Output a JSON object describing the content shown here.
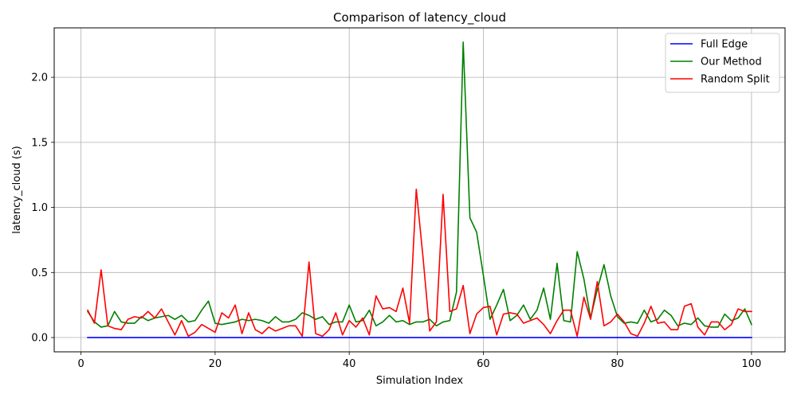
{
  "chart_data": {
    "type": "line",
    "title": "Comparison of latency_cloud",
    "xlabel": "Simulation Index",
    "ylabel": "latency_cloud (s)",
    "xlim": [
      -4,
      105
    ],
    "ylim": [
      -0.11,
      2.38
    ],
    "xticks": [
      0,
      20,
      40,
      60,
      80,
      100
    ],
    "xtick_labels": [
      "0",
      "20",
      "40",
      "60",
      "80",
      "100"
    ],
    "yticks": [
      0.0,
      0.5,
      1.0,
      1.5,
      2.0
    ],
    "ytick_labels": [
      "0.0",
      "0.5",
      "1.0",
      "1.5",
      "2.0"
    ],
    "grid": true,
    "legend_position": "top-right",
    "x": [
      1,
      2,
      3,
      4,
      5,
      6,
      7,
      8,
      9,
      10,
      11,
      12,
      13,
      14,
      15,
      16,
      17,
      18,
      19,
      20,
      21,
      22,
      23,
      24,
      25,
      26,
      27,
      28,
      29,
      30,
      31,
      32,
      33,
      34,
      35,
      36,
      37,
      38,
      39,
      40,
      41,
      42,
      43,
      44,
      45,
      46,
      47,
      48,
      49,
      50,
      51,
      52,
      53,
      54,
      55,
      56,
      57,
      58,
      59,
      60,
      61,
      62,
      63,
      64,
      65,
      66,
      67,
      68,
      69,
      70,
      71,
      72,
      73,
      74,
      75,
      76,
      77,
      78,
      79,
      80,
      81,
      82,
      83,
      84,
      85,
      86,
      87,
      88,
      89,
      90,
      91,
      92,
      93,
      94,
      95,
      96,
      97,
      98,
      99,
      100
    ],
    "series": [
      {
        "name": "Full Edge",
        "color": "#0000ff",
        "values": [
          0,
          0,
          0,
          0,
          0,
          0,
          0,
          0,
          0,
          0,
          0,
          0,
          0,
          0,
          0,
          0,
          0,
          0,
          0,
          0,
          0,
          0,
          0,
          0,
          0,
          0,
          0,
          0,
          0,
          0,
          0,
          0,
          0,
          0,
          0,
          0,
          0,
          0,
          0,
          0,
          0,
          0,
          0,
          0,
          0,
          0,
          0,
          0,
          0,
          0,
          0,
          0,
          0,
          0,
          0,
          0,
          0,
          0,
          0,
          0,
          0,
          0,
          0,
          0,
          0,
          0,
          0,
          0,
          0,
          0,
          0,
          0,
          0,
          0,
          0,
          0,
          0,
          0,
          0,
          0,
          0,
          0,
          0,
          0,
          0,
          0,
          0,
          0,
          0,
          0,
          0,
          0,
          0,
          0,
          0,
          0,
          0,
          0,
          0,
          0
        ]
      },
      {
        "name": "Our Method",
        "color": "#008000",
        "values": [
          0.2,
          0.12,
          0.08,
          0.09,
          0.2,
          0.12,
          0.11,
          0.11,
          0.16,
          0.13,
          0.15,
          0.16,
          0.17,
          0.14,
          0.17,
          0.12,
          0.13,
          0.21,
          0.28,
          0.11,
          0.1,
          0.11,
          0.12,
          0.14,
          0.13,
          0.14,
          0.13,
          0.11,
          0.16,
          0.12,
          0.12,
          0.14,
          0.19,
          0.17,
          0.14,
          0.16,
          0.1,
          0.12,
          0.12,
          0.25,
          0.12,
          0.13,
          0.21,
          0.09,
          0.12,
          0.17,
          0.12,
          0.13,
          0.1,
          0.12,
          0.12,
          0.14,
          0.09,
          0.12,
          0.13,
          0.35,
          2.27,
          0.92,
          0.81,
          0.48,
          0.14,
          0.25,
          0.37,
          0.13,
          0.17,
          0.25,
          0.14,
          0.21,
          0.38,
          0.14,
          0.57,
          0.13,
          0.12,
          0.66,
          0.45,
          0.15,
          0.37,
          0.56,
          0.32,
          0.16,
          0.11,
          0.12,
          0.11,
          0.21,
          0.12,
          0.14,
          0.21,
          0.17,
          0.09,
          0.11,
          0.1,
          0.15,
          0.09,
          0.08,
          0.08,
          0.18,
          0.13,
          0.15,
          0.22,
          0.1
        ]
      },
      {
        "name": "Random Split",
        "color": "#ff0000",
        "values": [
          0.21,
          0.11,
          0.52,
          0.09,
          0.07,
          0.06,
          0.14,
          0.16,
          0.15,
          0.2,
          0.15,
          0.22,
          0.12,
          0.02,
          0.13,
          0.01,
          0.04,
          0.1,
          0.07,
          0.04,
          0.19,
          0.15,
          0.25,
          0.03,
          0.19,
          0.06,
          0.03,
          0.08,
          0.05,
          0.07,
          0.09,
          0.09,
          0.01,
          0.58,
          0.03,
          0.01,
          0.06,
          0.19,
          0.02,
          0.13,
          0.08,
          0.15,
          0.02,
          0.32,
          0.22,
          0.23,
          0.2,
          0.38,
          0.11,
          1.14,
          0.62,
          0.05,
          0.12,
          1.1,
          0.2,
          0.22,
          0.4,
          0.03,
          0.18,
          0.23,
          0.24,
          0.02,
          0.18,
          0.19,
          0.18,
          0.11,
          0.13,
          0.15,
          0.1,
          0.03,
          0.13,
          0.21,
          0.21,
          0.01,
          0.31,
          0.14,
          0.43,
          0.09,
          0.12,
          0.18,
          0.12,
          0.03,
          0.01,
          0.11,
          0.24,
          0.11,
          0.12,
          0.06,
          0.06,
          0.24,
          0.26,
          0.08,
          0.02,
          0.12,
          0.12,
          0.06,
          0.1,
          0.22,
          0.2,
          0.2
        ]
      }
    ]
  }
}
